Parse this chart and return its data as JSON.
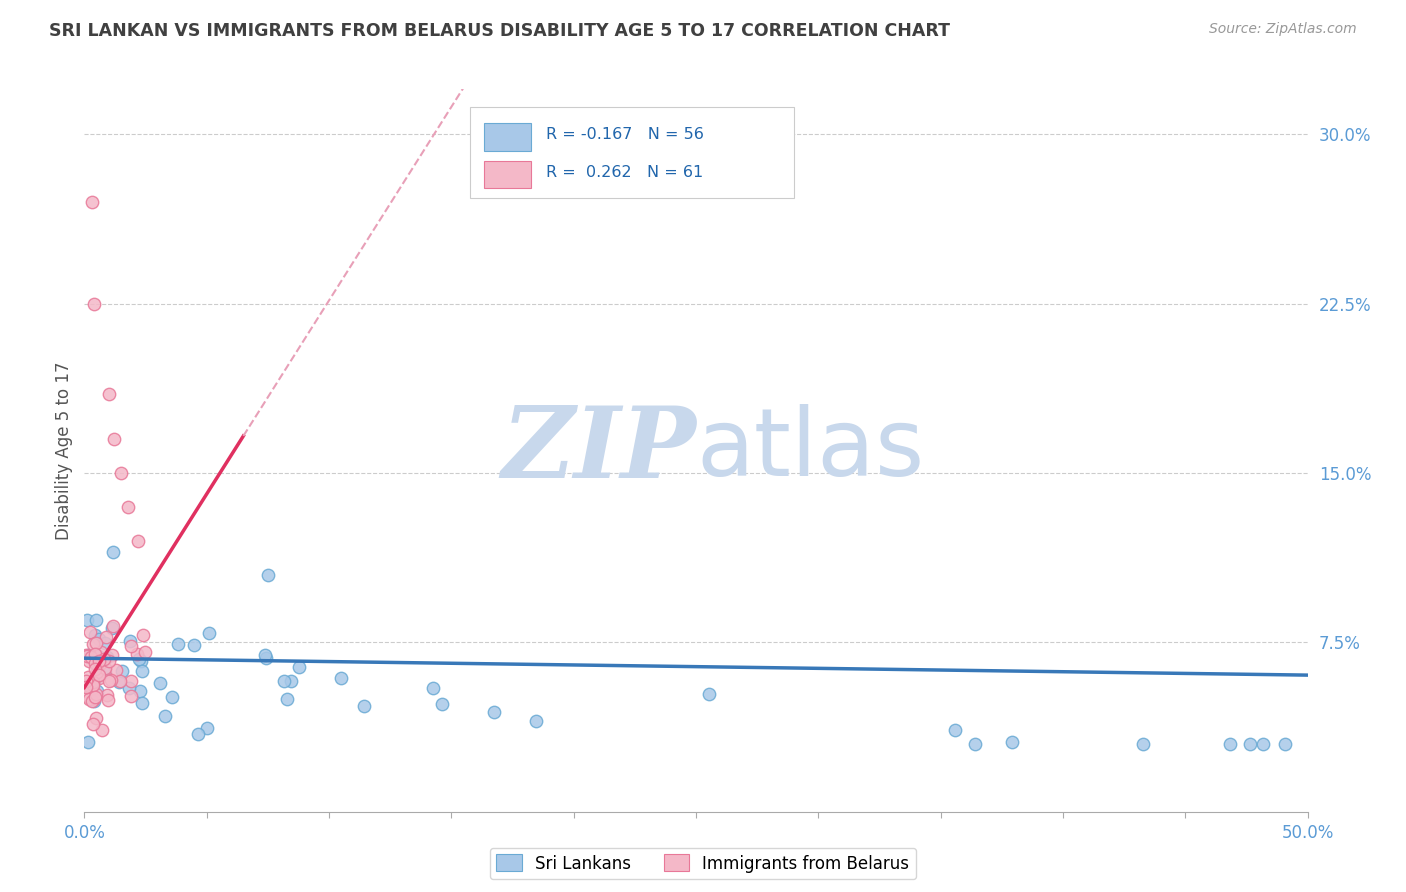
{
  "title": "SRI LANKAN VS IMMIGRANTS FROM BELARUS DISABILITY AGE 5 TO 17 CORRELATION CHART",
  "source_text": "Source: ZipAtlas.com",
  "ylabel": "Disability Age 5 to 17",
  "xlim": [
    0.0,
    0.5
  ],
  "ylim": [
    0.0,
    0.32
  ],
  "yticks_right": [
    0.075,
    0.15,
    0.225,
    0.3
  ],
  "ytick_right_labels": [
    "7.5%",
    "15.0%",
    "22.5%",
    "30.0%"
  ],
  "blue_color": "#a8c8e8",
  "blue_edge_color": "#6aaad4",
  "pink_color": "#f4b8c8",
  "pink_edge_color": "#e87898",
  "blue_line_color": "#3878b8",
  "pink_line_color": "#e03060",
  "pink_dash_color": "#e8a0b8",
  "title_color": "#404040",
  "axis_color": "#5b9bd5",
  "grid_color": "#cccccc",
  "watermark_zip_color": "#c8d8ec",
  "watermark_atlas_color": "#c8d8ec",
  "legend_text_color": "#2166ac",
  "legend_r1": "R = -0.167",
  "legend_n1": "N = 56",
  "legend_r2": "R =  0.262",
  "legend_n2": "N = 61"
}
